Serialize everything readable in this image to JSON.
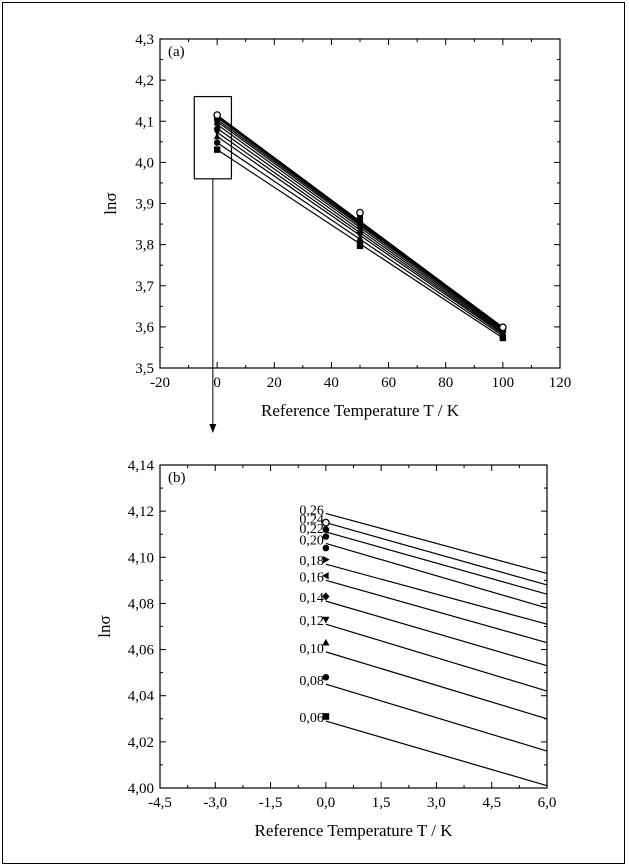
{
  "chart_data": [
    {
      "id": "a",
      "type": "scatter",
      "panel_label": "(a)",
      "xlabel": "Reference Temperature T / K",
      "ylabel": "lnσ",
      "xlim": [
        -20,
        120
      ],
      "ylim": [
        3.5,
        4.3
      ],
      "x_ticks": [
        "-20",
        "0",
        "20",
        "40",
        "60",
        "80",
        "100",
        "120"
      ],
      "y_ticks": [
        "3,5",
        "3,6",
        "3,7",
        "3,8",
        "3,9",
        "4,0",
        "4,1",
        "4,2",
        "4,3"
      ],
      "grid": false,
      "series": [
        {
          "marker": "square",
          "points": [
            [
              0,
              4.031
            ],
            [
              50,
              3.797
            ],
            [
              100,
              3.573
            ]
          ]
        },
        {
          "marker": "circle",
          "points": [
            [
              0,
              4.048
            ],
            [
              50,
              3.806
            ],
            [
              100,
              3.578
            ]
          ]
        },
        {
          "marker": "triangle-up",
          "points": [
            [
              0,
              4.063
            ],
            [
              50,
              3.815
            ],
            [
              100,
              3.582
            ]
          ]
        },
        {
          "marker": "triangle-down",
          "points": [
            [
              0,
              4.073
            ],
            [
              50,
              3.823
            ],
            [
              100,
              3.585
            ]
          ]
        },
        {
          "marker": "diamond",
          "points": [
            [
              0,
              4.083
            ],
            [
              50,
              3.831
            ],
            [
              100,
              3.588
            ]
          ]
        },
        {
          "marker": "triangle-left",
          "points": [
            [
              0,
              4.092
            ],
            [
              50,
              3.84
            ],
            [
              100,
              3.591
            ]
          ]
        },
        {
          "marker": "triangle-right",
          "points": [
            [
              0,
              4.099
            ],
            [
              50,
              3.848
            ],
            [
              100,
              3.594
            ]
          ]
        },
        {
          "marker": "circle",
          "points": [
            [
              0,
              4.104
            ],
            [
              50,
              3.856
            ],
            [
              100,
              3.596
            ]
          ]
        },
        {
          "marker": "circle",
          "points": [
            [
              0,
              4.109
            ],
            [
              50,
              3.864
            ],
            [
              100,
              3.597
            ]
          ]
        },
        {
          "marker": "circle",
          "points": [
            [
              0,
              4.112
            ],
            [
              50,
              3.871
            ],
            [
              100,
              3.598
            ]
          ]
        },
        {
          "marker": "circle-open",
          "points": [
            [
              0,
              4.115
            ],
            [
              50,
              3.878
            ],
            [
              100,
              3.599
            ]
          ]
        }
      ],
      "fit_lines": [
        [
          4.031,
          3.573
        ],
        [
          4.048,
          3.578
        ],
        [
          4.063,
          3.582
        ],
        [
          4.073,
          3.585
        ],
        [
          4.083,
          3.588
        ],
        [
          4.092,
          3.591
        ],
        [
          4.099,
          3.594
        ],
        [
          4.104,
          3.596
        ],
        [
          4.109,
          3.597
        ],
        [
          4.112,
          3.598
        ],
        [
          4.115,
          3.599
        ]
      ],
      "inset_box": {
        "x": [
          -8,
          5
        ],
        "y": [
          3.96,
          4.16
        ]
      }
    },
    {
      "id": "b",
      "type": "scatter",
      "panel_label": "(b)",
      "xlabel": "Reference Temperature T / K",
      "ylabel": "lnσ",
      "xlim": [
        -4.5,
        6.0
      ],
      "ylim": [
        4.0,
        4.14
      ],
      "x_ticks": [
        "-4,5",
        "-3,0",
        "-1,5",
        "0,0",
        "1,5",
        "3,0",
        "4,5",
        "6,0"
      ],
      "y_ticks": [
        "4,00",
        "4,02",
        "4,04",
        "4,06",
        "4,08",
        "4,10",
        "4,12",
        "4,14"
      ],
      "grid": false,
      "series": [
        {
          "label": "0,06",
          "marker": "square",
          "point": [
            0,
            4.031
          ],
          "line": [
            4.029,
            4.001
          ]
        },
        {
          "label": "0,08",
          "marker": "circle",
          "point": [
            0,
            4.048
          ],
          "line": [
            4.045,
            4.016
          ]
        },
        {
          "label": "0,10",
          "marker": "triangle-up",
          "point": [
            0,
            4.063
          ],
          "line": [
            4.059,
            4.03
          ]
        },
        {
          "label": "0,12",
          "marker": "triangle-down",
          "point": [
            0,
            4.073
          ],
          "line": [
            4.071,
            4.042
          ]
        },
        {
          "label": "0,14",
          "marker": "diamond",
          "point": [
            0,
            4.083
          ],
          "line": [
            4.081,
            4.053
          ]
        },
        {
          "label": "0,16",
          "marker": "triangle-left",
          "point": [
            0,
            4.092
          ],
          "line": [
            4.09,
            4.063
          ]
        },
        {
          "label": "0,18",
          "marker": "triangle-right",
          "point": [
            0,
            4.099
          ],
          "line": [
            4.097,
            4.071
          ]
        },
        {
          "label": "0,20",
          "marker": "circle",
          "point": [
            0,
            4.104
          ],
          "line": [
            4.106,
            4.078
          ]
        },
        {
          "label": "0,22",
          "marker": "circle",
          "point": [
            0,
            4.109
          ],
          "line": [
            4.111,
            4.084
          ]
        },
        {
          "label": "0,24",
          "marker": "circle",
          "point": [
            0,
            4.112
          ],
          "line": [
            4.115,
            4.088
          ]
        },
        {
          "label": "0,26",
          "marker": "circle-open",
          "point": [
            0,
            4.115
          ],
          "line": [
            4.119,
            4.093
          ]
        }
      ]
    }
  ]
}
